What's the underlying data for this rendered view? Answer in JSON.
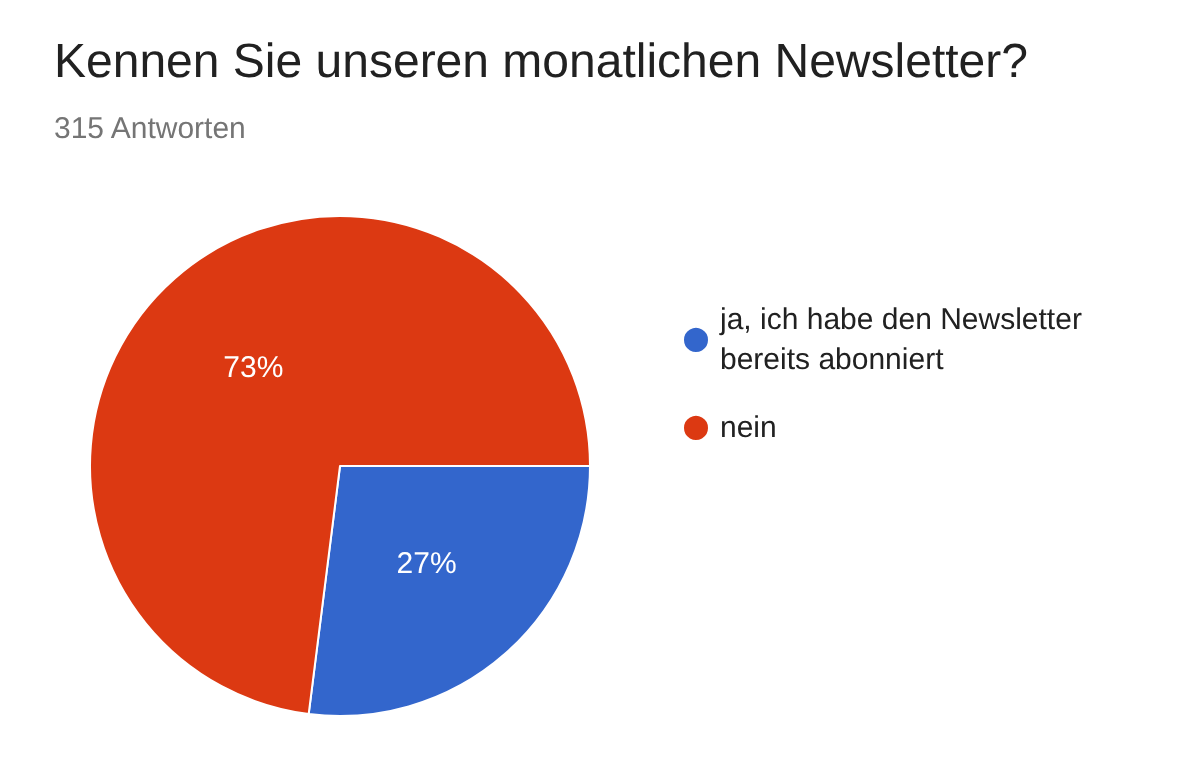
{
  "chart_data": {
    "type": "pie",
    "title": "Kennen Sie unseren monatlichen Newsletter?",
    "subtitle": "315 Antworten",
    "categories": [
      "ja, ich habe den Newsletter bereits abonniert",
      "nein"
    ],
    "values": [
      27,
      73
    ],
    "colors": [
      "#3366cc",
      "#dc3912"
    ],
    "value_labels": [
      "27%",
      "73%"
    ],
    "legend": "right"
  }
}
